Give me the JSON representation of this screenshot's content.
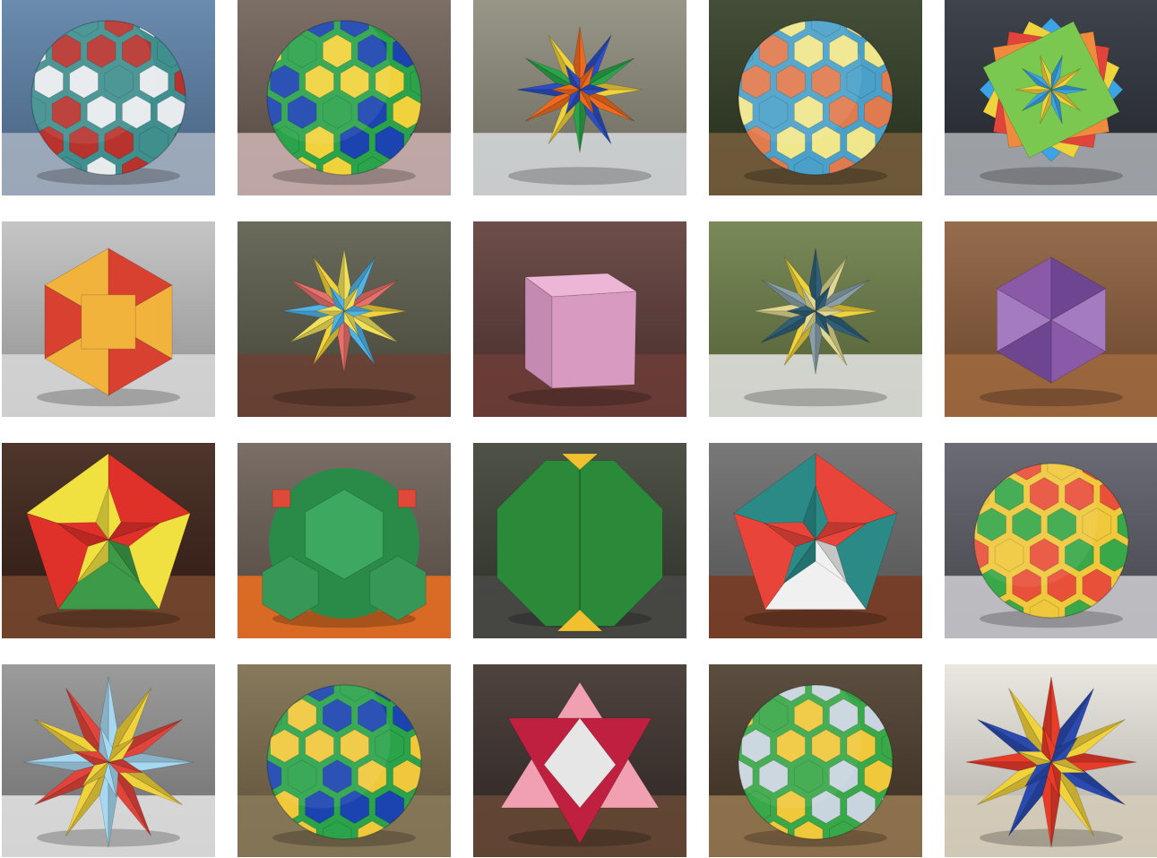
{
  "gallery": {
    "rows": 4,
    "columns": 5,
    "tiles": [
      {
        "subject": "great-dodecahedron-model",
        "palette": {
          "bg": "#5b7fa6",
          "base": "#a9b4c2",
          "a": "#e8ebee",
          "b": "#b8332e",
          "c": "#3f8f8f"
        }
      },
      {
        "subject": "snub-dodecahedron-model",
        "palette": {
          "bg": "#6d5f55",
          "base": "#d0b6b6",
          "a": "#f0d23c",
          "b": "#1c44b0",
          "c": "#2aa34a"
        }
      },
      {
        "subject": "small-stellated-dodecahedron-model",
        "palette": {
          "bg": "#8c8a7a",
          "base": "#d8dcdf",
          "a": "#f06a1e",
          "b": "#2c4ec2",
          "c": "#2aa34a"
        }
      },
      {
        "subject": "truncated-icosahedron-model",
        "palette": {
          "bg": "#2f3a22",
          "base": "#7a5f3e",
          "a": "#f0e68c",
          "b": "#e07a4f",
          "c": "#4aa0c9"
        }
      },
      {
        "subject": "compound-of-five-octahedra-model",
        "palette": {
          "bg": "#2a2f38",
          "base": "#b0b4b8",
          "a": "#3ba4e6",
          "b": "#f0d23c",
          "c": "#e0443a"
        }
      },
      {
        "subject": "cuboctahedron-model",
        "palette": {
          "bg": "#bfbfbf",
          "base": "#d9d9d9",
          "a": "#f2b33d",
          "b": "#d84130",
          "c": "#c9c9c9"
        }
      },
      {
        "subject": "compound-of-five-tetrahedra-model",
        "palette": {
          "bg": "#5a5a4a",
          "base": "#6d3f34",
          "a": "#f0e05a",
          "b": "#4fb3e8",
          "c": "#e8706a"
        }
      },
      {
        "subject": "cube-model",
        "palette": {
          "bg": "#5d3a37",
          "base": "#6e3d38",
          "a": "#eaa8cf",
          "b": "#c48ab2",
          "c": "#d89ac0"
        }
      },
      {
        "subject": "great-stellated-dodecahedron-model",
        "palette": {
          "bg": "#6a7c45",
          "base": "#e6e6e6",
          "a": "#2f5f78",
          "b": "#e0d890",
          "c": "#8aa0a8"
        }
      },
      {
        "subject": "icosahedron-model",
        "palette": {
          "bg": "#8a5c3a",
          "base": "#a06a40",
          "a": "#8a5aa8",
          "b": "#6e4590",
          "c": "#a47ac0"
        }
      },
      {
        "subject": "compound-of-icosahedron-and-dodecahedron-model",
        "palette": {
          "bg": "#3a2015",
          "base": "#7a4a30",
          "a": "#e0302a",
          "b": "#f0e040",
          "c": "#3c9a48"
        }
      },
      {
        "subject": "truncated-octahedron-model",
        "palette": {
          "bg": "#6b5e55",
          "base": "#f07020",
          "a": "#3ca860",
          "b": "#e04838",
          "c": "#2a8a48"
        }
      },
      {
        "subject": "truncated-cube-model",
        "palette": {
          "bg": "#3b3f33",
          "base": "#4a4a48",
          "a": "#2a8a3a",
          "b": "#f0c030",
          "c": "#237832"
        }
      },
      {
        "subject": "great-icosahedron-model",
        "palette": {
          "bg": "#6a6a6a",
          "base": "#7a3a20",
          "a": "#e8443a",
          "b": "#2b8a86",
          "c": "#f0f0f0"
        }
      },
      {
        "subject": "rhombicosidodecahedron-model",
        "palette": {
          "bg": "#5a5a66",
          "base": "#cfcfd4",
          "a": "#e8503a",
          "b": "#38a848",
          "c": "#f0c83c"
        }
      },
      {
        "subject": "small-ditrigonal-icosidodecahedron-model",
        "palette": {
          "bg": "#909090",
          "base": "#e6e6e6",
          "a": "#a6d8f2",
          "b": "#f0d23c",
          "c": "#e0443a"
        }
      },
      {
        "subject": "snub-cube-model",
        "palette": {
          "bg": "#7a6a4a",
          "base": "#8a7a5a",
          "a": "#f0c83c",
          "b": "#1c44b0",
          "c": "#2aa34a"
        }
      },
      {
        "subject": "stella-octangula-model",
        "palette": {
          "bg": "#3a2e2a",
          "base": "#6a4a36",
          "a": "#f0a0b0",
          "b": "#c02040",
          "c": "#e6e6e6"
        }
      },
      {
        "subject": "truncated-icosidodecahedron-model",
        "palette": {
          "bg": "#4a3a2a",
          "base": "#9a7a52",
          "a": "#c8d4de",
          "b": "#f0c83c",
          "c": "#38a848"
        }
      },
      {
        "subject": "compound-of-great-stellated-dodecahedron-model",
        "palette": {
          "bg": "#e8e4dc",
          "base": "#d6cdb8",
          "a": "#e83c2a",
          "b": "#2a4ab0",
          "c": "#f0d23c"
        }
      }
    ]
  }
}
